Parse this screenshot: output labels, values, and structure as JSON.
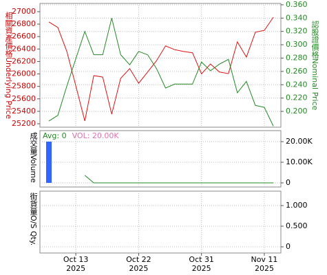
{
  "chart_data": [
    {
      "type": "line",
      "y_label": "相關資產價格Underlying Price",
      "y_label_color": "#cc0000",
      "y2_label": "認股證價格Nominal Price",
      "y2_label_color": "#228822",
      "ylim": [
        25145,
        27132
      ],
      "yticks": [
        25200,
        25400,
        25600,
        25800,
        26000,
        26200,
        26400,
        26600,
        26800,
        27000
      ],
      "y2lim": [
        0.1763,
        0.362
      ],
      "y2ticks": [
        {
          "value": 0.2,
          "label": "0.200"
        },
        {
          "value": 0.22,
          "label": "0.220"
        },
        {
          "value": 0.24,
          "label": "0.240"
        },
        {
          "value": 0.26,
          "label": "0.260"
        },
        {
          "value": 0.28,
          "label": "0.280"
        },
        {
          "value": 0.3,
          "label": "0.300"
        },
        {
          "value": 0.32,
          "label": "0.320"
        },
        {
          "value": 0.34,
          "label": "0.340"
        },
        {
          "value": 0.36,
          "label": "0.360"
        }
      ],
      "grid": true,
      "series": [
        {
          "color": "#dd1111",
          "axis": "y",
          "values": [
            26835,
            26746,
            26360,
            25810,
            25245,
            25973,
            25950,
            25355,
            25930,
            26085,
            25850,
            26030,
            26215,
            26450,
            26390,
            26360,
            26340,
            26000,
            26160,
            26030,
            26005,
            26515,
            26270,
            26670,
            26700,
            26910
          ]
        },
        {
          "color": "#228822",
          "axis": "y2",
          "values": [
            0.1855,
            0.194,
            0.238,
            0.279,
            0.32,
            0.285,
            0.285,
            0.34,
            0.285,
            0.27,
            0.29,
            0.285,
            0.264,
            0.235,
            0.241,
            0.241,
            0.241,
            0.274,
            0.261,
            0.271,
            0.278,
            0.228,
            0.245,
            0.209,
            0.206,
            0.178
          ]
        }
      ]
    },
    {
      "type": "combo",
      "y_label": "成交量Volume",
      "y_axis_position": "right",
      "ylim": [
        -2000,
        25333
      ],
      "yticks": [
        {
          "value": 0,
          "label": "0"
        },
        {
          "value": 10000,
          "label": "10.00K"
        },
        {
          "value": 20000,
          "label": "20.00K"
        }
      ],
      "grid": true,
      "annotations": [
        {
          "text": "Avg: 0",
          "color": "#228822"
        },
        {
          "text": "VOL: 20.00K",
          "color": "#e070b0"
        }
      ],
      "series": [
        {
          "type": "bar",
          "color": "#3366ff",
          "values": [
            20000,
            null,
            null,
            null,
            null,
            null,
            null,
            null,
            null,
            null,
            null,
            null,
            null,
            null,
            null,
            null,
            null,
            null,
            null,
            null,
            null,
            null,
            null,
            null,
            null,
            null
          ]
        },
        {
          "type": "line",
          "color": "#228822",
          "values": [
            null,
            null,
            null,
            null,
            3667,
            0,
            0,
            0,
            0,
            0,
            0,
            0,
            0,
            0,
            0,
            0,
            0,
            0,
            0,
            0,
            0,
            0,
            0,
            0,
            0,
            0
          ]
        }
      ]
    },
    {
      "type": "line",
      "y_label": "街貨量O/S Qty.",
      "y_axis_position": "right",
      "ylim": [
        -0.15,
        1.35
      ],
      "yticks": [
        {
          "value": 0,
          "label": "0"
        },
        {
          "value": 0.5,
          "label": "0.500"
        },
        {
          "value": 1,
          "label": "1.000"
        }
      ],
      "grid": true,
      "categories": [
        null,
        null,
        null,
        "Oct 13",
        null,
        null,
        null,
        null,
        null,
        null,
        "Oct 22",
        null,
        null,
        null,
        null,
        null,
        null,
        "Oct 31",
        null,
        null,
        null,
        null,
        null,
        null,
        "Nov 11",
        null
      ],
      "category_sublabels": [
        null,
        null,
        null,
        "2025",
        null,
        null,
        null,
        null,
        null,
        null,
        "2025",
        null,
        null,
        null,
        null,
        null,
        null,
        "2025",
        null,
        null,
        null,
        null,
        null,
        null,
        "2025",
        null
      ],
      "series": []
    }
  ]
}
